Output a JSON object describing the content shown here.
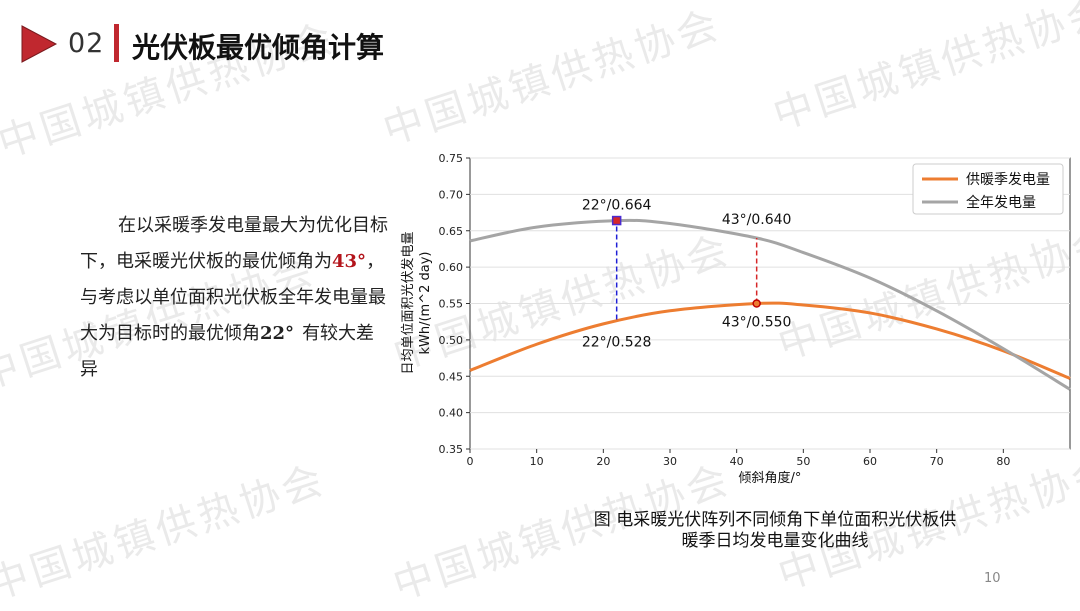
{
  "header": {
    "section_number": "02",
    "title": "光伏板最优倾角计算"
  },
  "watermark_text": "中国城镇供热协会",
  "body": {
    "line_part1": "在以采暖季发电量最大为优化目标下，电采暖光伏板的最优倾角为",
    "highlight_angle": "43°",
    "line_part2": "，与考虑以单位面积光伏板全年发电量最大为目标时的最优倾角",
    "bold_angle": "22°",
    "line_part3": "有较大差异"
  },
  "caption": {
    "line1": "图 电采暖光伏阵列不同倾角下单位面积光伏板供",
    "line2": "暖季日均发电量变化曲线"
  },
  "page_number": "10",
  "chart_data": {
    "type": "line",
    "xlabel": "倾斜角度/°",
    "ylabel_line1": "日均单位面积光伏发电量",
    "ylabel_line2": "kWh/(m^2 day)",
    "xlim": [
      0,
      90
    ],
    "ylim": [
      0.35,
      0.75
    ],
    "x_ticks": [
      0,
      10,
      20,
      30,
      40,
      50,
      60,
      70,
      80
    ],
    "y_ticks": [
      0.35,
      0.4,
      0.45,
      0.5,
      0.55,
      0.6,
      0.65,
      0.7,
      0.75
    ],
    "y_tick_labels": [
      "0.35",
      "0.40",
      "0.45",
      "0.50",
      "0.55",
      "0.60",
      "0.65",
      "0.70",
      "0.75"
    ],
    "grid": "horizontal",
    "legend_position": "top-right",
    "series": [
      {
        "name": "供暖季发电量",
        "color": "#ed7d31",
        "x": [
          0,
          10,
          20,
          30,
          43,
          50,
          60,
          70,
          80,
          90
        ],
        "y": [
          0.458,
          0.494,
          0.522,
          0.54,
          0.55,
          0.548,
          0.537,
          0.515,
          0.485,
          0.447
        ]
      },
      {
        "name": "全年发电量",
        "color": "#a5a5a5",
        "x": [
          0,
          10,
          22,
          30,
          43,
          50,
          60,
          70,
          80,
          90
        ],
        "y": [
          0.636,
          0.655,
          0.664,
          0.66,
          0.64,
          0.62,
          0.585,
          0.54,
          0.488,
          0.432
        ]
      }
    ],
    "annotations": [
      {
        "x": 22,
        "y": 0.664,
        "label": "22°/0.664"
      },
      {
        "x": 43,
        "y": 0.64,
        "label": "43°/0.640"
      },
      {
        "x": 22,
        "y": 0.528,
        "label": "22°/0.528"
      },
      {
        "x": 43,
        "y": 0.55,
        "label": "43°/0.550"
      }
    ],
    "marker_lines": [
      {
        "x": 22,
        "y_from": 0.528,
        "y_to": 0.664,
        "color": "#1f1fd6"
      },
      {
        "x": 43,
        "y_from": 0.55,
        "y_to": 0.64,
        "color": "#d62728"
      }
    ],
    "markers": [
      {
        "x": 22,
        "y": 0.664,
        "shape": "square",
        "color": "#d62728",
        "edge": "#4a2bd1"
      },
      {
        "x": 43,
        "y": 0.55,
        "shape": "circle",
        "color": "#ed7d31",
        "edge": "#c00000"
      }
    ]
  }
}
